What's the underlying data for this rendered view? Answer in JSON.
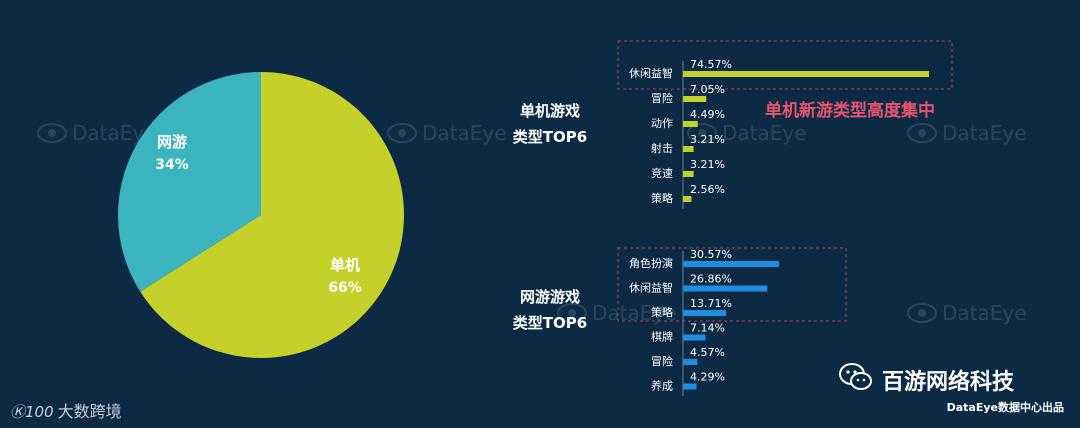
{
  "chart_data": [
    {
      "type": "pie",
      "slices": [
        {
          "label": "单机",
          "value": 66,
          "display": "66%",
          "color": "#c5d12a"
        },
        {
          "label": "网游",
          "value": 34,
          "display": "34%",
          "color": "#3cb4bd"
        }
      ]
    },
    {
      "type": "bar",
      "orientation": "horizontal",
      "title": "单机游戏\n类型TOP6",
      "categories": [
        "休闲益智",
        "冒险",
        "动作",
        "射击",
        "竞速",
        "策略"
      ],
      "values": [
        74.57,
        7.05,
        4.49,
        3.21,
        3.21,
        2.56
      ],
      "labels": [
        "74.57%",
        "7.05%",
        "4.49%",
        "3.21%",
        "3.21%",
        "2.56%"
      ],
      "color": "#c5d12a",
      "annotation": "单机新游类型高度集中"
    },
    {
      "type": "bar",
      "orientation": "horizontal",
      "title": "网游游戏\n类型TOP6",
      "categories": [
        "角色扮演",
        "休闲益智",
        "策略",
        "棋牌",
        "冒险",
        "养成"
      ],
      "values": [
        30.57,
        26.86,
        13.71,
        7.14,
        4.57,
        4.29
      ],
      "labels": [
        "30.57%",
        "26.86%",
        "13.71%",
        "7.14%",
        "4.57%",
        "4.29%"
      ],
      "color": "#1e8fe0"
    }
  ],
  "titles": {
    "standalone_line1": "单机游戏",
    "standalone_line2": "类型TOP6",
    "online_line1": "网游游戏",
    "online_line2": "类型TOP6"
  },
  "callout": "单机新游类型高度集中",
  "watermark": "DataEye",
  "brand": "百游网络科技",
  "source": "DataEye数据中心出品",
  "corner_logo": "大数跨境",
  "corner_mark": "Ⓚ100"
}
